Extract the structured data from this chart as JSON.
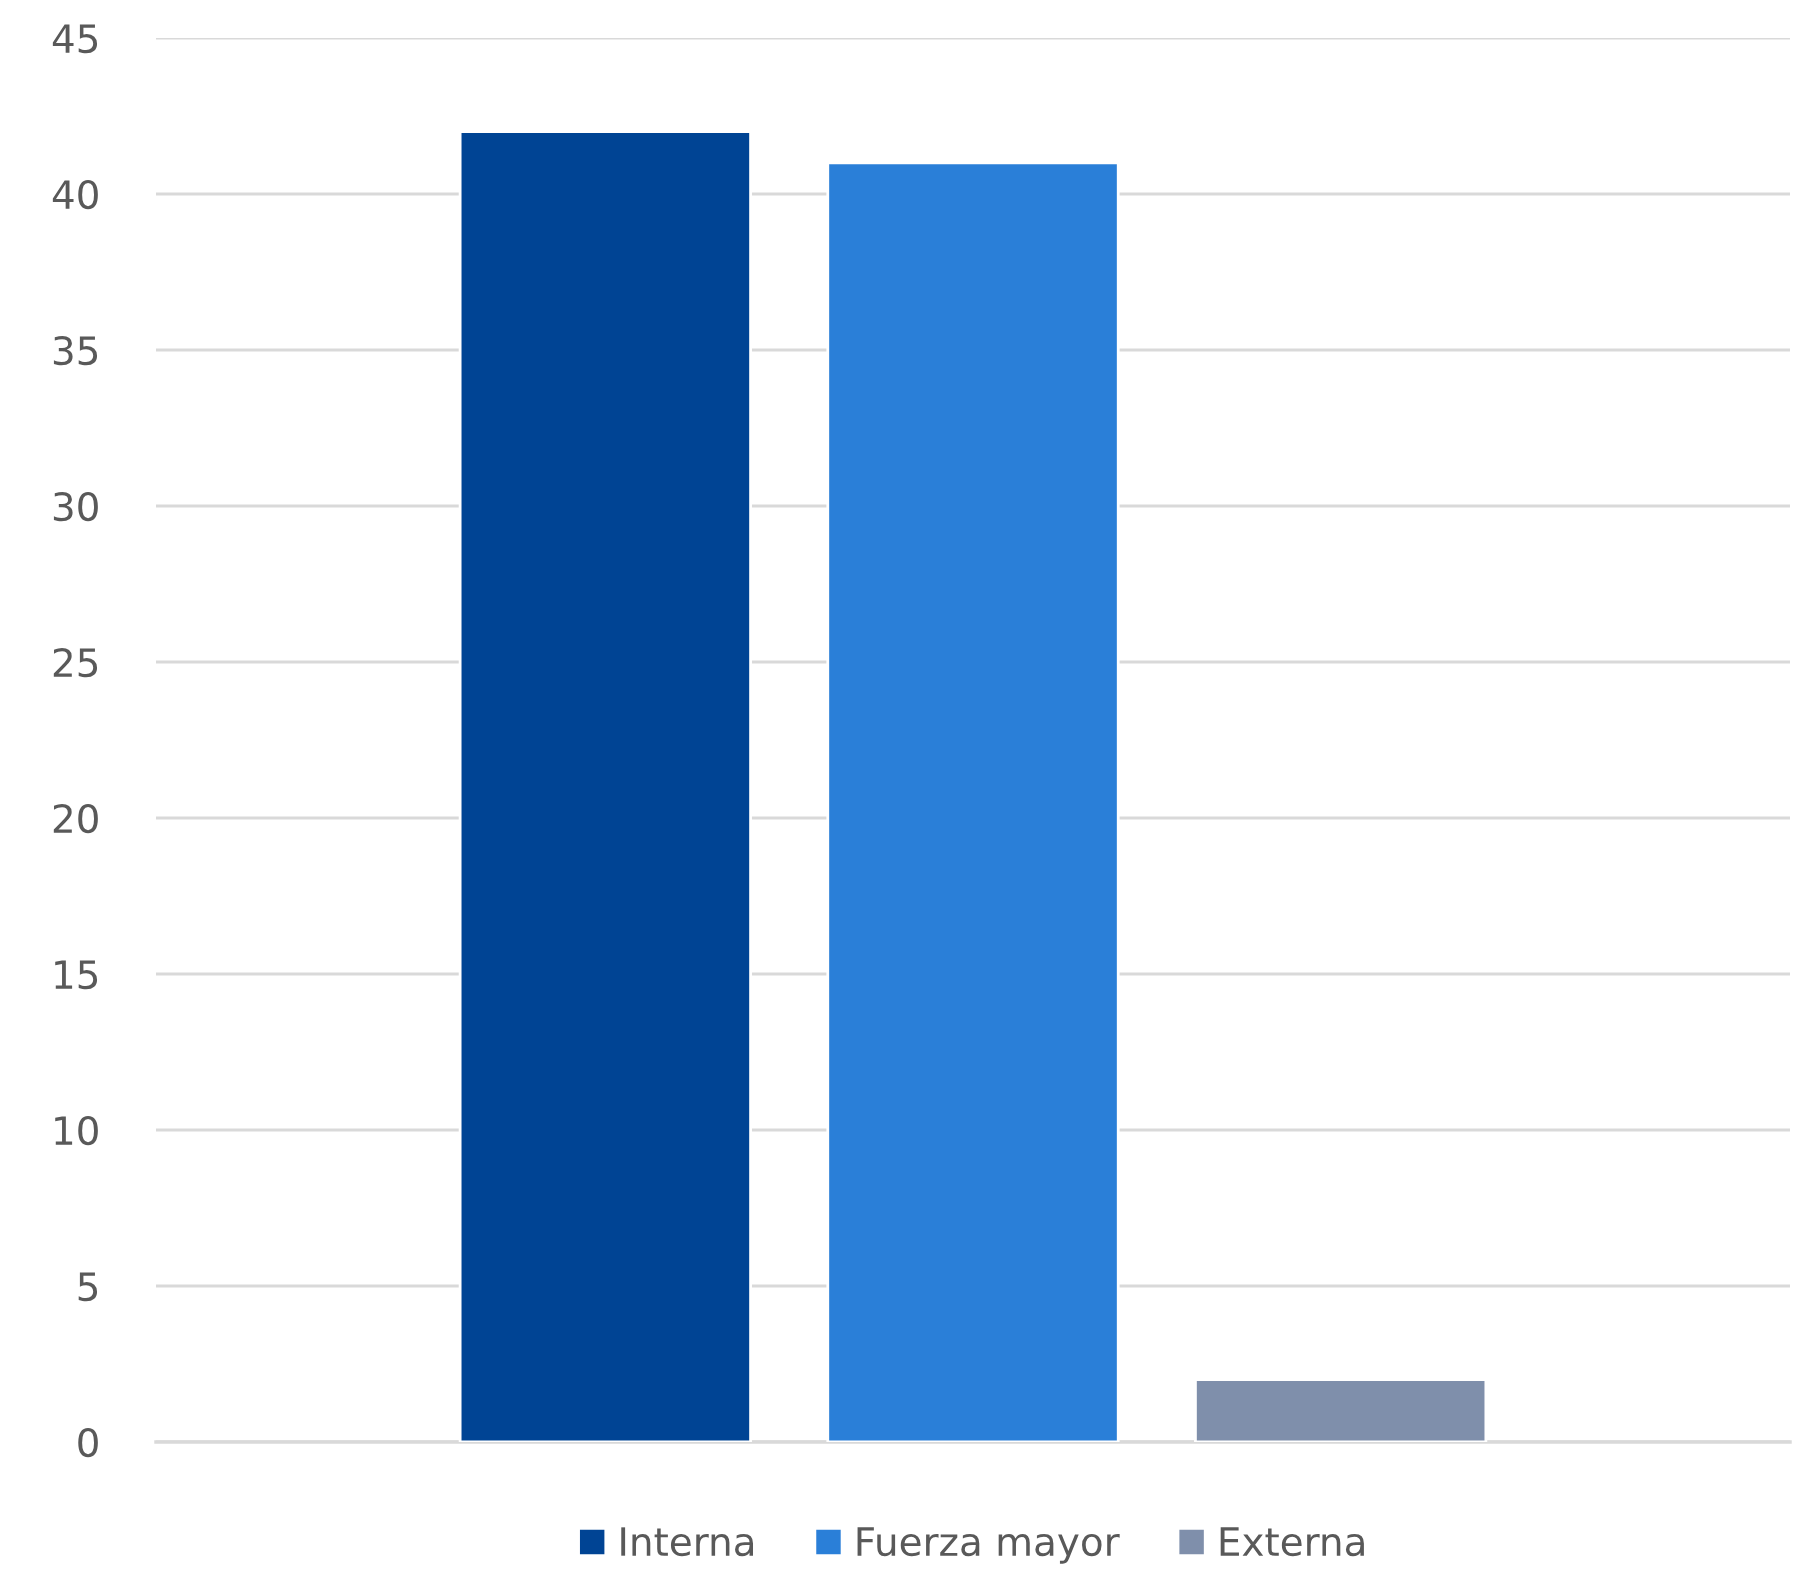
{
  "chart_data": {
    "type": "bar",
    "categories": [
      null
    ],
    "series": [
      {
        "name": "Interna",
        "color": "#004494",
        "values": [
          42
        ]
      },
      {
        "name": "Fuerza mayor",
        "color": "#2a7fd8",
        "values": [
          41
        ]
      },
      {
        "name": "Externa",
        "color": "#7f8fab",
        "values": [
          2
        ]
      }
    ],
    "ylim": [
      0,
      45
    ],
    "yticks": [
      0,
      5,
      10,
      15,
      20,
      25,
      30,
      35,
      40,
      45
    ],
    "grid": "y",
    "legend": "bottom"
  }
}
